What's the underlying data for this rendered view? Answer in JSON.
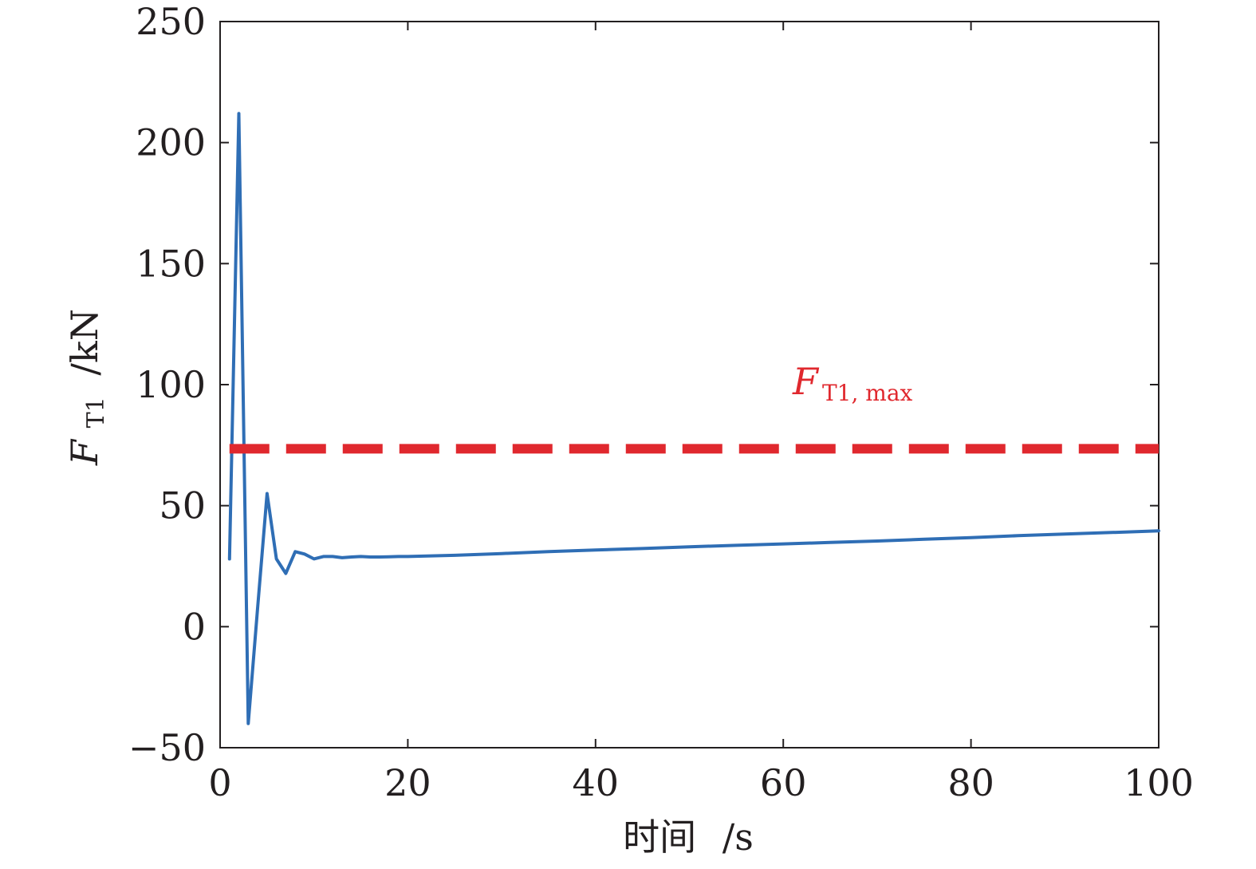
{
  "chart_data": {
    "type": "line",
    "xlabel": {
      "main": "时间",
      "unit": "/s"
    },
    "ylabel": {
      "symbol": "F",
      "subscript": "T1",
      "unit": "/kN"
    },
    "xlim": [
      0,
      100
    ],
    "ylim": [
      -50,
      250
    ],
    "xticks": [
      0,
      20,
      40,
      60,
      80,
      100
    ],
    "yticks": [
      -50,
      0,
      50,
      100,
      150,
      200,
      250
    ],
    "ytick_labels": [
      "−50",
      "0",
      "50",
      "100",
      "150",
      "200",
      "250"
    ],
    "grid": false,
    "series": [
      {
        "color": "#2f6eb5",
        "x": [
          1,
          2,
          3,
          4,
          5,
          6,
          7,
          8,
          9,
          10,
          11,
          12,
          13,
          14,
          15,
          16,
          17,
          18,
          19,
          20,
          25,
          30,
          35,
          40,
          45,
          50,
          55,
          60,
          65,
          70,
          75,
          80,
          85,
          90,
          95,
          100
        ],
        "y": [
          28,
          212,
          -40,
          8,
          55,
          28,
          22,
          31,
          30,
          28,
          29,
          29,
          28.5,
          28.8,
          29,
          28.8,
          28.8,
          28.9,
          29,
          29,
          29.5,
          30.2,
          31,
          31.7,
          32.3,
          33,
          33.6,
          34.2,
          34.8,
          35.4,
          36.1,
          36.8,
          37.6,
          38.3,
          38.9,
          39.6
        ]
      }
    ],
    "annotations": [
      {
        "type": "hline",
        "y": 73.5,
        "x_range": [
          1,
          100
        ],
        "style": "dashed",
        "color": "#e0282e",
        "label": {
          "symbol": "F",
          "subscript": "T1, max",
          "x": 61,
          "y": 96
        }
      }
    ]
  }
}
